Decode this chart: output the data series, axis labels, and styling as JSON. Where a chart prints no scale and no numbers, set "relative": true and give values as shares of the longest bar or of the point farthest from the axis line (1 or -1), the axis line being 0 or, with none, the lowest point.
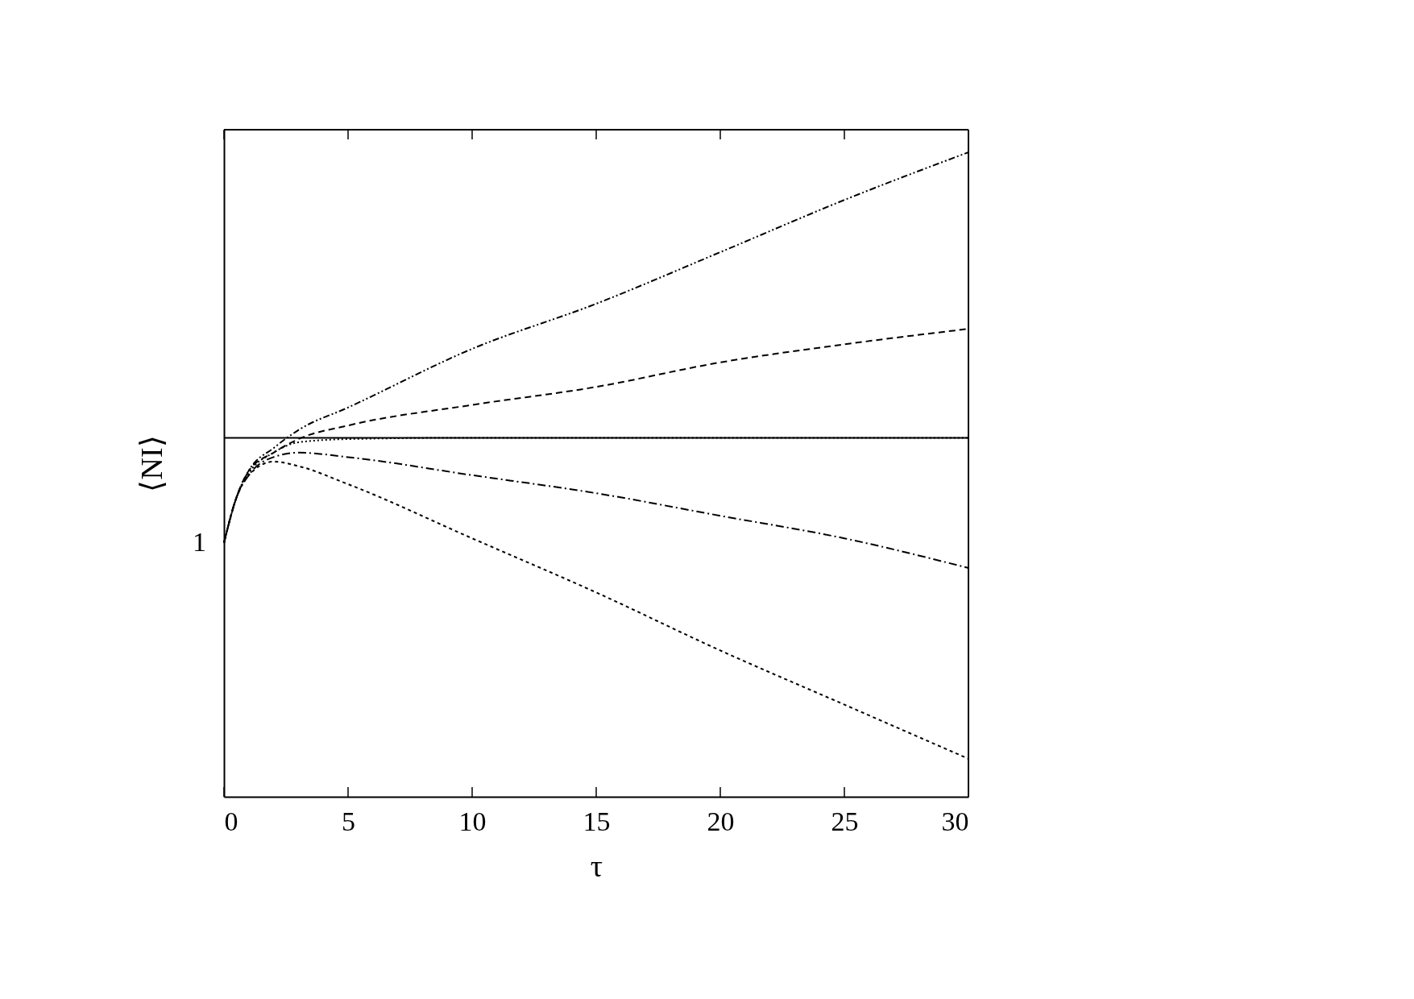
{
  "chart_data": {
    "type": "line",
    "xlabel": "τ",
    "ylabel": "⟨NI⟩",
    "relative": true,
    "xlim": [
      0,
      30
    ],
    "xticks": [
      0,
      5,
      10,
      15,
      20,
      25,
      30
    ],
    "grid": false,
    "x": [
      0,
      0.5,
      1,
      2,
      3,
      5,
      10,
      15,
      20,
      25,
      30
    ],
    "series": [
      {
        "color": "#000000",
        "line_style": "dashdotdot",
        "values": [
          0.394,
          0.464,
          0.506,
          0.541,
          0.569,
          0.604,
          0.695,
          0.765,
          0.845,
          0.926,
          1.0
        ]
      },
      {
        "color": "#000000",
        "line_style": "dashed",
        "values": [
          0.394,
          0.464,
          0.506,
          0.534,
          0.555,
          0.576,
          0.608,
          0.636,
          0.674,
          0.702,
          0.726
        ]
      },
      {
        "color": "#000000",
        "line_style": "dotted",
        "values": [
          0.394,
          0.464,
          0.502,
          0.534,
          0.55,
          0.555,
          0.557,
          0.557,
          0.557,
          0.557,
          0.557
        ]
      },
      {
        "color": "#000000",
        "line_style": "dashdot",
        "values": [
          0.394,
          0.464,
          0.499,
          0.527,
          0.534,
          0.527,
          0.499,
          0.471,
          0.436,
          0.401,
          0.355
        ]
      },
      {
        "color": "#000000",
        "line_style": "shortdash",
        "values": [
          0.394,
          0.464,
          0.499,
          0.52,
          0.513,
          0.485,
          0.401,
          0.317,
          0.227,
          0.143,
          0.059
        ]
      }
    ],
    "ref_lines": [
      {
        "axis": "y",
        "value": 0.557,
        "color": "#000000",
        "line_style": "solid"
      }
    ],
    "annotations": [
      {
        "text": "1",
        "x": 0,
        "y": 0.394
      }
    ]
  }
}
